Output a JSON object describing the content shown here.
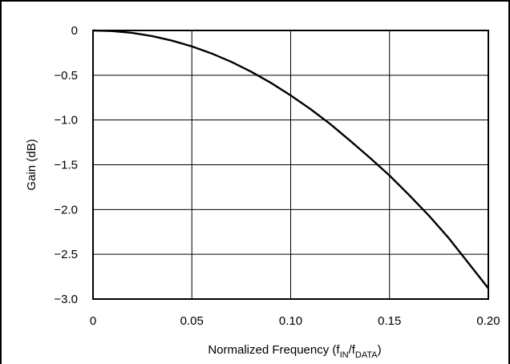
{
  "chart_data": {
    "type": "line",
    "title": "",
    "xlabel": {
      "prefix": "Normalized Frequency (f",
      "sub1": "IN",
      "mid": "/f",
      "sub2": "DATA",
      "suffix": ")"
    },
    "ylabel": "Gain (dB)",
    "xlim": [
      0,
      0.2
    ],
    "ylim": [
      -3.0,
      0
    ],
    "x_ticks": [
      0,
      0.05,
      0.1,
      0.15,
      0.2
    ],
    "x_tick_labels": [
      "0",
      "0.05",
      "0.10",
      "0.15",
      "0.20"
    ],
    "y_ticks": [
      0,
      -0.5,
      -1.0,
      -1.5,
      -2.0,
      -2.5,
      -3.0
    ],
    "y_tick_labels": [
      "0",
      "−0.5",
      "−1.0",
      "−1.5",
      "−2.0",
      "−2.5",
      "−3.0"
    ],
    "grid": true,
    "line_color": "#000000",
    "series": [
      {
        "x": [
          0,
          0.01,
          0.02,
          0.03,
          0.04,
          0.05,
          0.06,
          0.07,
          0.08,
          0.09,
          0.1,
          0.11,
          0.12,
          0.13,
          0.14,
          0.15,
          0.16,
          0.17,
          0.18,
          0.19,
          0.2
        ],
        "values": [
          0,
          -0.007,
          -0.028,
          -0.064,
          -0.114,
          -0.178,
          -0.257,
          -0.351,
          -0.46,
          -0.585,
          -0.725,
          -0.878,
          -1.045,
          -1.23,
          -1.42,
          -1.62,
          -1.84,
          -2.07,
          -2.32,
          -2.6,
          -2.88
        ]
      }
    ]
  }
}
